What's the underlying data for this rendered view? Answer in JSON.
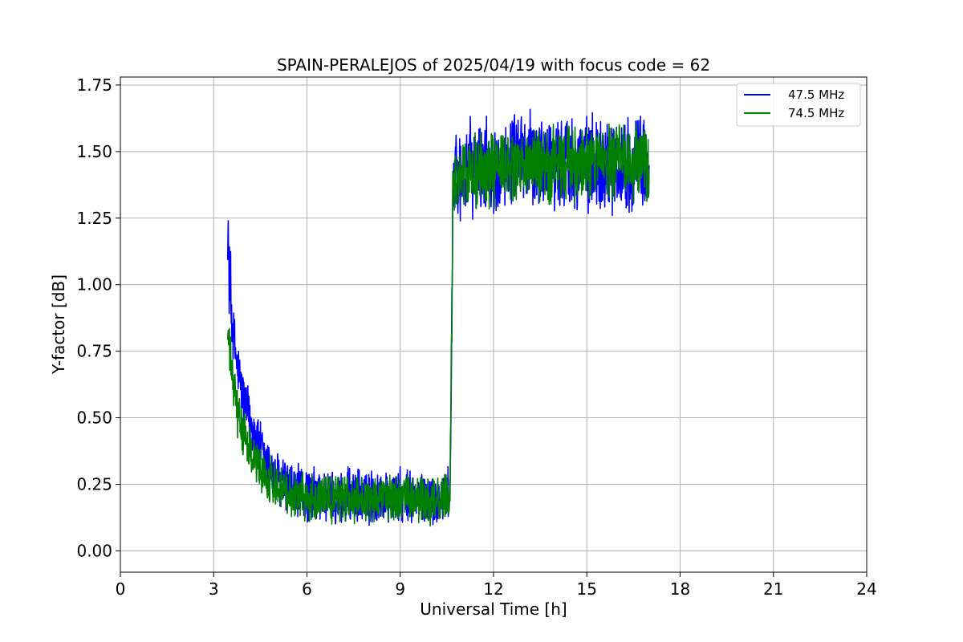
{
  "chart_data": {
    "type": "line",
    "title": "SPAIN-PERALEJOS of 2025/04/19 with focus code = 62",
    "xlabel": "Universal Time [h]",
    "ylabel": "Y-factor [dB]",
    "xlim": [
      0,
      24
    ],
    "ylim": [
      -0.08,
      1.78
    ],
    "xticks": [
      0,
      3,
      6,
      9,
      12,
      15,
      18,
      21,
      24
    ],
    "xtick_labels": [
      "0",
      "3",
      "6",
      "9",
      "12",
      "15",
      "18",
      "21",
      "24"
    ],
    "yticks": [
      0.0,
      0.25,
      0.5,
      0.75,
      1.0,
      1.25,
      1.5,
      1.75
    ],
    "ytick_labels": [
      "0.00",
      "0.25",
      "0.50",
      "0.75",
      "1.00",
      "1.25",
      "1.50",
      "1.75"
    ],
    "grid": true,
    "legend_position": "top-right",
    "series": [
      {
        "name": "47.5 MHz",
        "color": "#0000ff",
        "x_range": [
          3.45,
          17.0
        ],
        "points": [
          [
            3.45,
            1.2
          ],
          [
            3.5,
            1.05
          ],
          [
            3.6,
            0.85
          ],
          [
            3.75,
            0.7
          ],
          [
            4.0,
            0.55
          ],
          [
            4.3,
            0.45
          ],
          [
            4.6,
            0.35
          ],
          [
            5.0,
            0.27
          ],
          [
            5.5,
            0.23
          ],
          [
            6.0,
            0.21
          ],
          [
            7.0,
            0.2
          ],
          [
            8.0,
            0.2
          ],
          [
            9.0,
            0.2
          ],
          [
            10.0,
            0.19
          ],
          [
            10.6,
            0.2
          ],
          [
            10.7,
            1.4
          ],
          [
            11.0,
            1.43
          ],
          [
            12.0,
            1.45
          ],
          [
            13.0,
            1.47
          ],
          [
            14.0,
            1.47
          ],
          [
            15.0,
            1.46
          ],
          [
            16.0,
            1.45
          ],
          [
            17.0,
            1.46
          ]
        ],
        "noise_amplitude": [
          0.12,
          0.2
        ]
      },
      {
        "name": "74.5 MHz",
        "color": "#008000",
        "x_range": [
          3.45,
          17.0
        ],
        "points": [
          [
            3.45,
            0.82
          ],
          [
            3.6,
            0.65
          ],
          [
            3.8,
            0.5
          ],
          [
            4.0,
            0.42
          ],
          [
            4.3,
            0.35
          ],
          [
            4.6,
            0.29
          ],
          [
            5.0,
            0.25
          ],
          [
            5.5,
            0.22
          ],
          [
            6.0,
            0.2
          ],
          [
            7.0,
            0.2
          ],
          [
            8.0,
            0.2
          ],
          [
            9.0,
            0.2
          ],
          [
            10.0,
            0.19
          ],
          [
            10.6,
            0.2
          ],
          [
            10.7,
            1.4
          ],
          [
            11.0,
            1.42
          ],
          [
            12.0,
            1.43
          ],
          [
            13.0,
            1.44
          ],
          [
            14.0,
            1.45
          ],
          [
            15.0,
            1.45
          ],
          [
            16.0,
            1.46
          ],
          [
            17.0,
            1.45
          ]
        ],
        "noise_amplitude": [
          0.1,
          0.16
        ]
      }
    ]
  }
}
